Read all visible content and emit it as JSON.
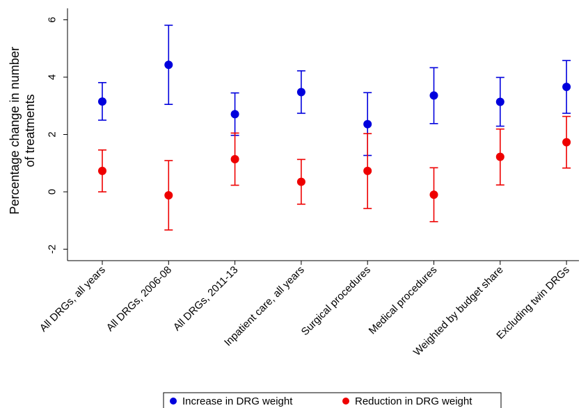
{
  "chart_data": {
    "type": "scatter",
    "ylabel_lines": [
      "Percentage change in number",
      "of treatments"
    ],
    "ylim": [
      -2.4,
      6.4
    ],
    "yticks": [
      -2,
      0,
      2,
      4,
      6
    ],
    "ytick_labels": [
      "-2",
      "0",
      "2",
      "4",
      "6"
    ],
    "grid": false,
    "legend_position": "bottom-center",
    "categories": [
      "All DRGs, all years",
      "All DRGs, 2006-08",
      "All DRGs, 2011-13",
      "Inpatient care, all years",
      "Surgical procedures",
      "Medical procedures",
      "Weighted by budget share",
      "Excluding twin DRGs"
    ],
    "series": [
      {
        "name": "Increase in DRG weight",
        "color": "#0000dd",
        "values": [
          3.15,
          4.43,
          2.71,
          3.48,
          2.36,
          3.36,
          3.14,
          3.66
        ],
        "lower": [
          2.5,
          3.05,
          1.97,
          2.74,
          1.27,
          2.38,
          2.29,
          2.74
        ],
        "upper": [
          3.81,
          5.81,
          3.45,
          4.22,
          3.46,
          4.33,
          3.99,
          4.58
        ]
      },
      {
        "name": "Reduction in DRG weight",
        "color": "#ee0000",
        "values": [
          0.73,
          -0.12,
          1.14,
          0.35,
          0.73,
          -0.1,
          1.22,
          1.73
        ],
        "lower": [
          0.0,
          -1.33,
          0.23,
          -0.43,
          -0.58,
          -1.04,
          0.24,
          0.83
        ],
        "upper": [
          1.46,
          1.09,
          2.05,
          1.13,
          2.03,
          0.84,
          2.19,
          2.63
        ]
      }
    ]
  }
}
